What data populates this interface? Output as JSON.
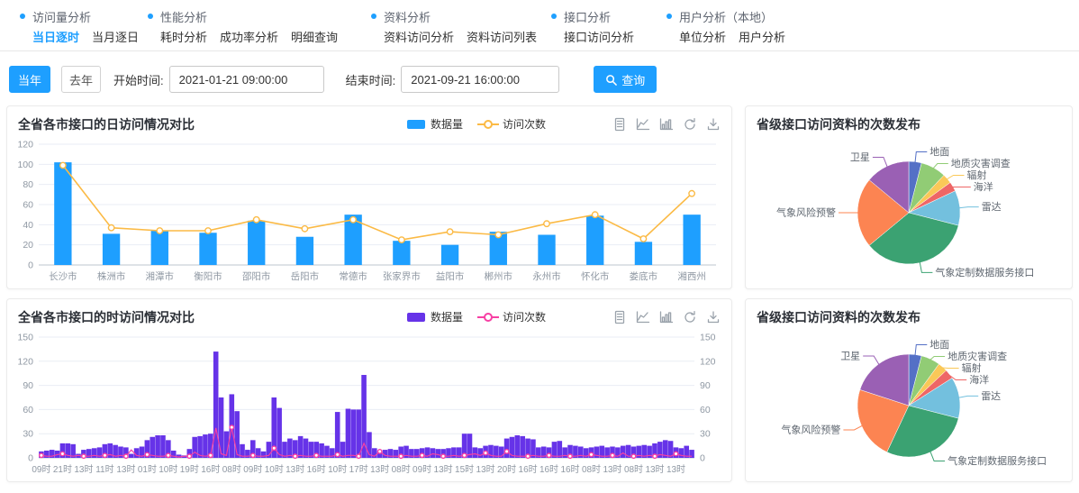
{
  "nav": {
    "groups": [
      {
        "title": "访问量分析",
        "links": [
          {
            "label": "当日逐时",
            "active": true
          },
          {
            "label": "当月逐日",
            "active": false
          }
        ]
      },
      {
        "title": "性能分析",
        "links": [
          {
            "label": "耗时分析",
            "active": false
          },
          {
            "label": "成功率分析",
            "active": false
          },
          {
            "label": "明细查询",
            "active": false
          }
        ]
      },
      {
        "title": "资料分析",
        "links": [
          {
            "label": "资料访问分析",
            "active": false
          },
          {
            "label": "资料访问列表",
            "active": false
          }
        ]
      },
      {
        "title": "接口分析",
        "links": [
          {
            "label": "接口访问分析",
            "active": false
          }
        ]
      },
      {
        "title": "用户分析（本地）",
        "links": [
          {
            "label": "单位分析",
            "active": false
          },
          {
            "label": "用户分析",
            "active": false
          }
        ]
      }
    ]
  },
  "filters": {
    "this_year": "当年",
    "last_year": "去年",
    "start_label": "开始时间:",
    "start_value": "2021-01-21 09:00:00",
    "end_label": "结束时间:",
    "end_value": "2021-09-21 16:00:00",
    "query_label": "查询"
  },
  "toolbox": {
    "icons": [
      "data-view",
      "line-type",
      "bar-type",
      "restore",
      "save-image"
    ]
  },
  "colors": {
    "accent": "#1e9fff",
    "grid": "#e9edf4",
    "axis": "#bcc5cf",
    "axis_text": "#8f98a3",
    "title": "#2b2f36"
  },
  "chart_data": [
    {
      "type": "bar",
      "title": "全省各市接口的日访问情况对比",
      "legend_position": "top-right",
      "grid": true,
      "ylim": [
        0,
        120
      ],
      "yticks": [
        0,
        20,
        40,
        60,
        80,
        100,
        120
      ],
      "dual_axis": false,
      "dense": false,
      "categories": [
        "长沙市",
        "株洲市",
        "湘潭市",
        "衡阳市",
        "邵阳市",
        "岳阳市",
        "常德市",
        "张家界市",
        "益阳市",
        "郴州市",
        "永州市",
        "怀化市",
        "娄底市",
        "湘西州"
      ],
      "series": [
        {
          "name": "数据量",
          "type": "bar",
          "color": "#1e9fff",
          "values": [
            102,
            31,
            34,
            32,
            44,
            28,
            50,
            24,
            20,
            33,
            30,
            49,
            23,
            50
          ]
        },
        {
          "name": "访问次数",
          "type": "line",
          "color": "#fbba45",
          "values": [
            99,
            37,
            34,
            34,
            45,
            36,
            45,
            25,
            33,
            30,
            41,
            50,
            26,
            71
          ]
        }
      ]
    },
    {
      "type": "pie",
      "title": "省级接口访问资料的次数发布",
      "legend_position": "none",
      "slices": [
        {
          "label": "地面",
          "value_pct": 4,
          "color": "#5470c6"
        },
        {
          "label": "地质灾害调查",
          "value_pct": 8,
          "color": "#91cc75"
        },
        {
          "label": "辐射",
          "value_pct": 3,
          "color": "#fac858"
        },
        {
          "label": "海洋",
          "value_pct": 3,
          "color": "#ee6666"
        },
        {
          "label": "雷达",
          "value_pct": 11,
          "color": "#73c0de"
        },
        {
          "label": "气象定制数据服务接口",
          "value_pct": 35,
          "color": "#3ba272"
        },
        {
          "label": "气象风险预警",
          "value_pct": 22,
          "color": "#fc8452"
        },
        {
          "label": "卫星",
          "value_pct": 14,
          "color": "#9a60b4"
        }
      ]
    },
    {
      "type": "bar",
      "title": "全省各市接口的时访问情况对比",
      "legend_position": "top-right",
      "grid": true,
      "ylim": [
        0,
        150
      ],
      "yticks": [
        0,
        30,
        60,
        90,
        120,
        150
      ],
      "dual_axis": true,
      "dense": true,
      "bars_per_label": 4,
      "x_labels": [
        "09时",
        "21时",
        "13时",
        "11时",
        "13时",
        "01时",
        "10时",
        "19时",
        "16时",
        "08时",
        "09时",
        "10时",
        "13时",
        "16时",
        "10时",
        "17时",
        "13时",
        "08时",
        "09时",
        "13时",
        "15时",
        "13时",
        "20时",
        "16时",
        "16时",
        "16时",
        "08时",
        "13时",
        "08时",
        "13时",
        "13时"
      ],
      "series": [
        {
          "name": "数据量",
          "type": "bar",
          "color": "#6633e8",
          "values": [
            8,
            9,
            10,
            9,
            18,
            18,
            17,
            5,
            10,
            11,
            12,
            13,
            17,
            18,
            16,
            14,
            13,
            5,
            12,
            14,
            22,
            26,
            28,
            28,
            22,
            9,
            4,
            3,
            11,
            26,
            27,
            29,
            30,
            132,
            75,
            33,
            79,
            58,
            17,
            10,
            22,
            12,
            8,
            20,
            75,
            62,
            20,
            24,
            22,
            27,
            24,
            20,
            20,
            18,
            15,
            12,
            57,
            20,
            61,
            60,
            60,
            103,
            32,
            12,
            8,
            10,
            11,
            10,
            14,
            15,
            11,
            11,
            12,
            13,
            12,
            11,
            11,
            12,
            13,
            13,
            30,
            30,
            13,
            12,
            15,
            16,
            15,
            14,
            24,
            26,
            28,
            27,
            24,
            23,
            13,
            14,
            13,
            20,
            21,
            13,
            16,
            15,
            14,
            12,
            13,
            14,
            15,
            13,
            14,
            13,
            15,
            16,
            14,
            15,
            16,
            15,
            18,
            20,
            22,
            21,
            13,
            12,
            15,
            10
          ]
        },
        {
          "name": "访问次数",
          "type": "line",
          "color": "#f73fa3",
          "values": [
            3,
            2,
            2,
            4,
            5,
            3,
            2,
            3,
            2,
            2,
            3,
            2,
            3,
            4,
            2,
            3,
            2,
            10,
            3,
            2,
            4,
            3,
            2,
            2,
            3,
            2,
            1,
            2,
            2,
            7,
            3,
            2,
            3,
            37,
            5,
            3,
            38,
            4,
            2,
            2,
            3,
            2,
            2,
            3,
            12,
            4,
            2,
            3,
            2,
            3,
            2,
            2,
            3,
            2,
            2,
            2,
            4,
            2,
            3,
            3,
            2,
            18,
            4,
            2,
            8,
            3,
            2,
            2,
            2,
            3,
            2,
            2,
            3,
            2,
            5,
            4,
            2,
            2,
            3,
            2,
            3,
            4,
            5,
            3,
            6,
            3,
            2,
            2,
            8,
            3,
            2,
            2,
            2,
            3,
            2,
            2,
            3,
            2,
            2,
            3,
            2,
            2,
            3,
            2,
            4,
            3,
            2,
            2,
            3,
            2,
            6,
            2,
            2,
            3,
            2,
            3,
            2,
            4,
            3,
            2,
            5,
            3,
            2,
            2
          ]
        }
      ]
    },
    {
      "type": "pie",
      "title": "省级接口访问资料的次数发布",
      "legend_position": "none",
      "slices": [
        {
          "label": "地面",
          "value_pct": 4,
          "color": "#5470c6"
        },
        {
          "label": "地质灾害调查",
          "value_pct": 6,
          "color": "#91cc75"
        },
        {
          "label": "辐射",
          "value_pct": 3,
          "color": "#fac858"
        },
        {
          "label": "海洋",
          "value_pct": 3,
          "color": "#ee6666"
        },
        {
          "label": "雷达",
          "value_pct": 13,
          "color": "#73c0de"
        },
        {
          "label": "气象定制数据服务接口",
          "value_pct": 28,
          "color": "#3ba272"
        },
        {
          "label": "气象风险预警",
          "value_pct": 23,
          "color": "#fc8452"
        },
        {
          "label": "卫星",
          "value_pct": 20,
          "color": "#9a60b4"
        }
      ]
    }
  ]
}
